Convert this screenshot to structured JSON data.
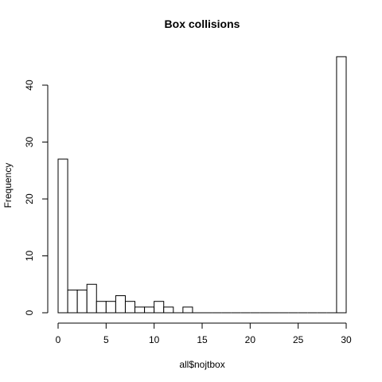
{
  "chart_data": {
    "type": "bar",
    "title": "Box collisions",
    "xlabel": "all$nojtbox",
    "ylabel": "Frequency",
    "bin_width": 1,
    "bins": [
      {
        "start": 0,
        "end": 1,
        "count": 27
      },
      {
        "start": 1,
        "end": 2,
        "count": 4
      },
      {
        "start": 2,
        "end": 3,
        "count": 4
      },
      {
        "start": 3,
        "end": 4,
        "count": 5
      },
      {
        "start": 4,
        "end": 5,
        "count": 2
      },
      {
        "start": 5,
        "end": 6,
        "count": 2
      },
      {
        "start": 6,
        "end": 7,
        "count": 3
      },
      {
        "start": 7,
        "end": 8,
        "count": 2
      },
      {
        "start": 8,
        "end": 9,
        "count": 1
      },
      {
        "start": 9,
        "end": 10,
        "count": 1
      },
      {
        "start": 10,
        "end": 11,
        "count": 2
      },
      {
        "start": 11,
        "end": 12,
        "count": 1
      },
      {
        "start": 12,
        "end": 13,
        "count": 0
      },
      {
        "start": 13,
        "end": 14,
        "count": 1
      },
      {
        "start": 14,
        "end": 15,
        "count": 0
      },
      {
        "start": 15,
        "end": 16,
        "count": 0
      },
      {
        "start": 16,
        "end": 17,
        "count": 0
      },
      {
        "start": 17,
        "end": 18,
        "count": 0
      },
      {
        "start": 18,
        "end": 19,
        "count": 0
      },
      {
        "start": 19,
        "end": 20,
        "count": 0
      },
      {
        "start": 20,
        "end": 21,
        "count": 0
      },
      {
        "start": 21,
        "end": 22,
        "count": 0
      },
      {
        "start": 22,
        "end": 23,
        "count": 0
      },
      {
        "start": 23,
        "end": 24,
        "count": 0
      },
      {
        "start": 24,
        "end": 25,
        "count": 0
      },
      {
        "start": 25,
        "end": 26,
        "count": 0
      },
      {
        "start": 26,
        "end": 27,
        "count": 0
      },
      {
        "start": 27,
        "end": 28,
        "count": 0
      },
      {
        "start": 28,
        "end": 29,
        "count": 0
      },
      {
        "start": 29,
        "end": 30,
        "count": 45
      }
    ],
    "xlim": [
      0,
      30
    ],
    "ylim": [
      0,
      45
    ],
    "x_ticks": [
      "0",
      "5",
      "10",
      "15",
      "20",
      "25",
      "30"
    ],
    "y_ticks": [
      "0",
      "10",
      "20",
      "30",
      "40"
    ],
    "grid": false,
    "legend": "none",
    "colors": {
      "bar_fill": "#ffffff",
      "bar_stroke": "#000000"
    }
  }
}
